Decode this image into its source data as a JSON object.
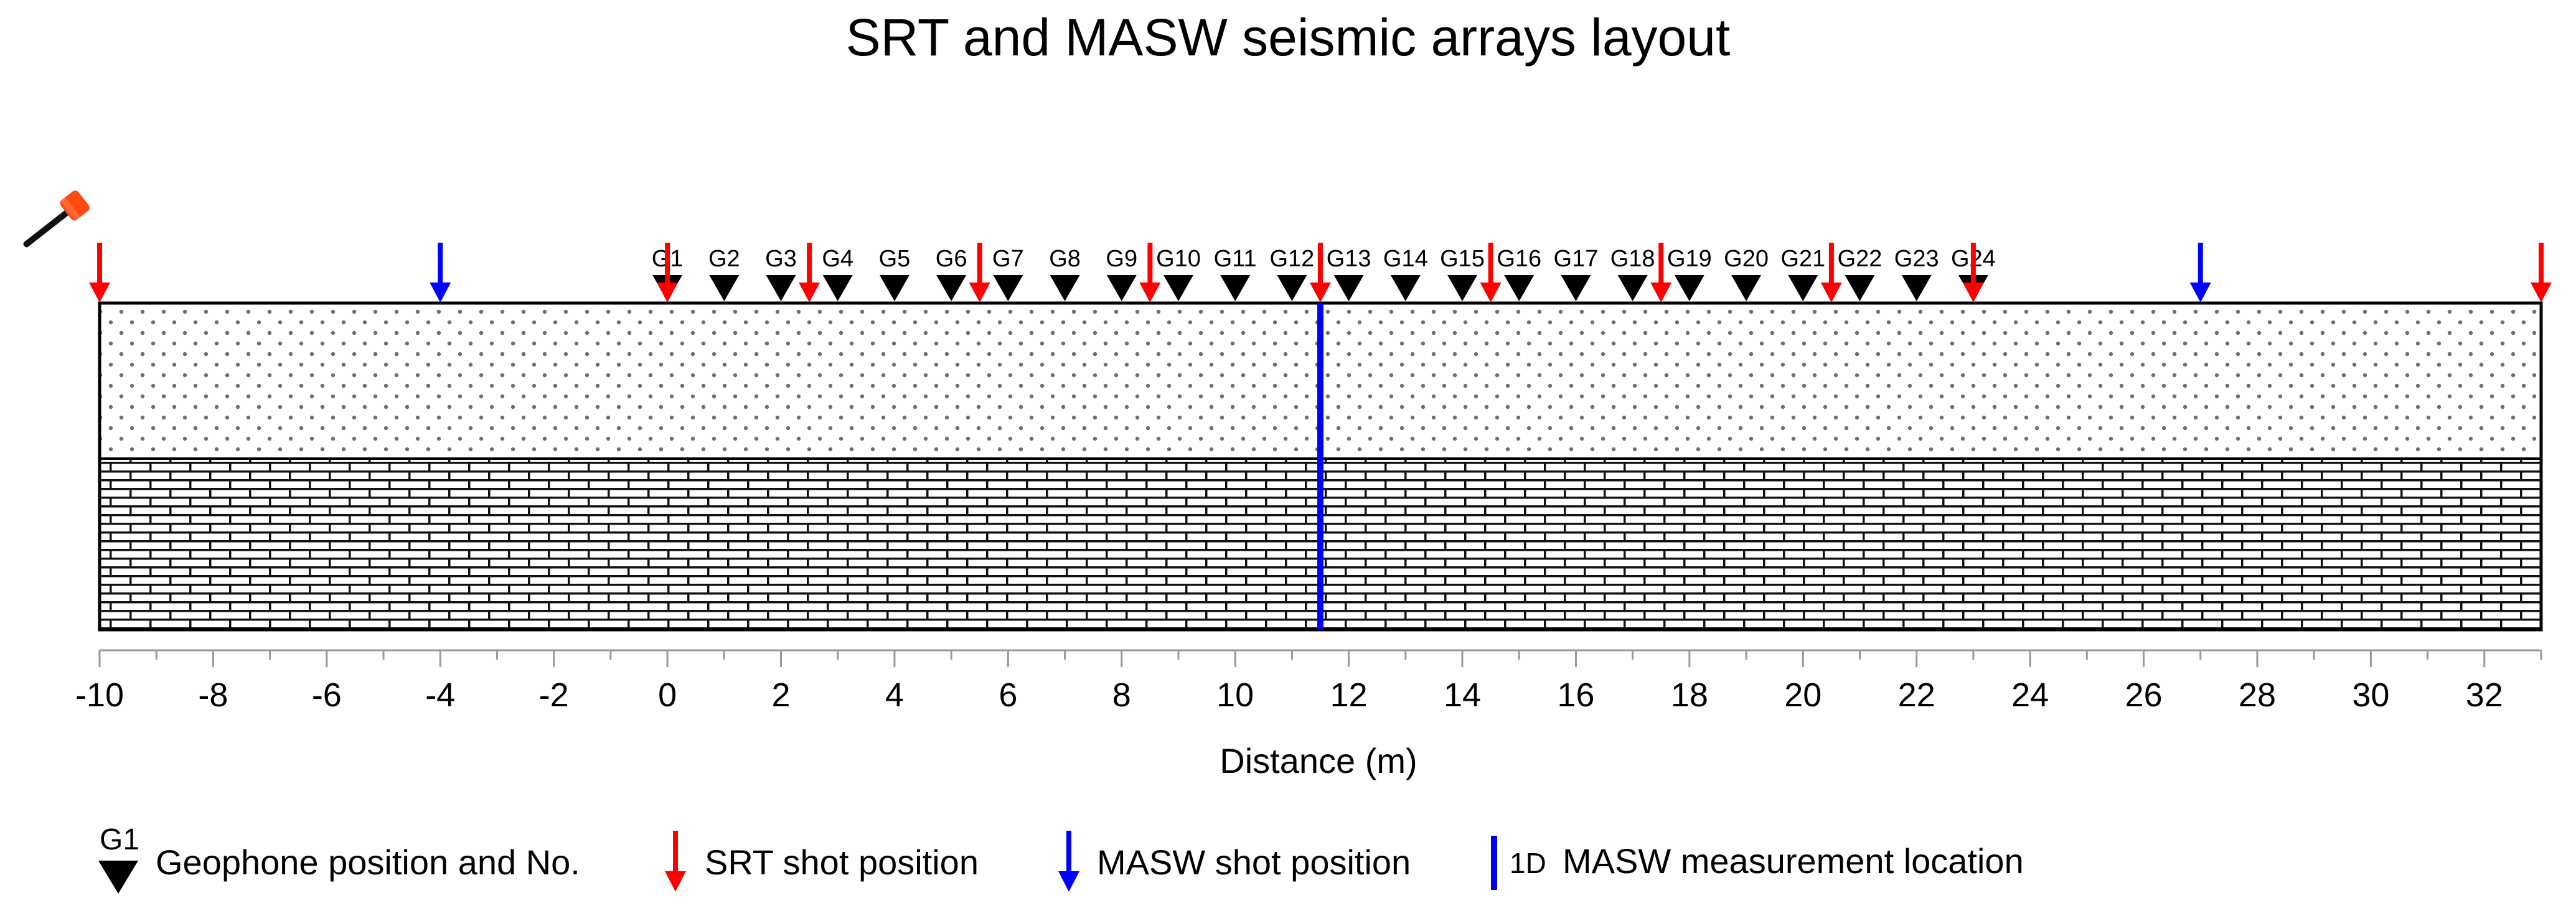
{
  "chart_data": {
    "type": "diagram",
    "title": "SRT and MASW seismic arrays layout",
    "xlabel": "Distance (m)",
    "xlim": [
      -10,
      33
    ],
    "major_ticks": [
      -10,
      -8,
      -6,
      -4,
      -2,
      0,
      2,
      4,
      6,
      8,
      10,
      12,
      14,
      16,
      18,
      20,
      22,
      24,
      26,
      28,
      30,
      32
    ],
    "geophones": [
      {
        "label": "G1",
        "x": 0
      },
      {
        "label": "G2",
        "x": 1
      },
      {
        "label": "G3",
        "x": 2
      },
      {
        "label": "G4",
        "x": 3
      },
      {
        "label": "G5",
        "x": 4
      },
      {
        "label": "G6",
        "x": 5
      },
      {
        "label": "G7",
        "x": 6
      },
      {
        "label": "G8",
        "x": 7
      },
      {
        "label": "G9",
        "x": 8
      },
      {
        "label": "G10",
        "x": 9
      },
      {
        "label": "G11",
        "x": 10
      },
      {
        "label": "G12",
        "x": 11
      },
      {
        "label": "G13",
        "x": 12
      },
      {
        "label": "G14",
        "x": 13
      },
      {
        "label": "G15",
        "x": 14
      },
      {
        "label": "G16",
        "x": 15
      },
      {
        "label": "G17",
        "x": 16
      },
      {
        "label": "G18",
        "x": 17
      },
      {
        "label": "G19",
        "x": 18
      },
      {
        "label": "G20",
        "x": 19
      },
      {
        "label": "G21",
        "x": 20
      },
      {
        "label": "G22",
        "x": 21
      },
      {
        "label": "G23",
        "x": 22
      },
      {
        "label": "G24",
        "x": 23
      }
    ],
    "srt_shots": [
      -10,
      0,
      2.5,
      5.5,
      8.5,
      11.5,
      14.5,
      17.5,
      20.5,
      23,
      33
    ],
    "masw_shots": [
      -4,
      27
    ],
    "masw_1d_location": 11.5,
    "layers": [
      "sandy soil (dotted)",
      "limestone (brick pattern)"
    ],
    "legend": {
      "geophone_symbol_label": "G1",
      "geophone": "Geophone position and No.",
      "srt_shot": "SRT shot position",
      "masw_shot": "MASW shot position",
      "masw_1d_prefix": "1D",
      "masw_1d": "MASW measurement location"
    },
    "colors": {
      "srt": "#ff0000",
      "masw": "#0000ff",
      "hammer_head": "#ff4a12",
      "hammer_handle": "#111111",
      "geophone": "#000000"
    }
  }
}
